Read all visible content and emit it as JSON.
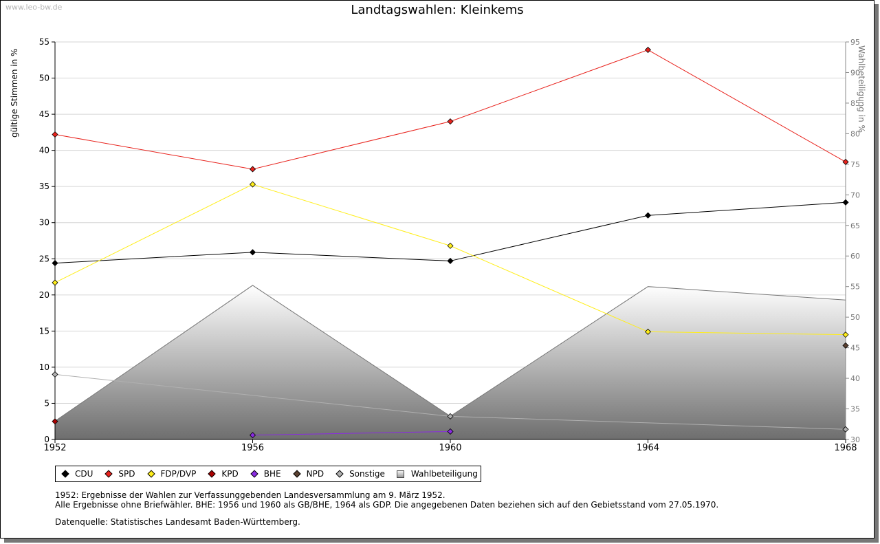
{
  "watermark": "www.leo-bw.de",
  "chart_data": {
    "type": "line",
    "title": "Landtagswahlen: Kleinkems",
    "xlabel": "",
    "ylabel": "gültige Stimmen in %",
    "y2label": "Wahlbeteiligung in %",
    "x": [
      "1952",
      "1956",
      "1960",
      "1964",
      "1968"
    ],
    "ylim": [
      0,
      55
    ],
    "y2lim": [
      30,
      95
    ],
    "yticks": [
      "0",
      "5",
      "10",
      "15",
      "20",
      "25",
      "30",
      "35",
      "40",
      "45",
      "50",
      "55"
    ],
    "y2ticks": [
      "30",
      "35",
      "40",
      "45",
      "50",
      "55",
      "60",
      "65",
      "70",
      "75",
      "80",
      "85",
      "90",
      "95"
    ],
    "grid": true,
    "series": [
      {
        "name": "CDU",
        "color": "#000000",
        "values": [
          24.4,
          25.9,
          24.7,
          31.0,
          32.8
        ]
      },
      {
        "name": "SPD",
        "color": "#e8221c",
        "values": [
          42.2,
          37.4,
          44.0,
          53.9,
          38.4
        ]
      },
      {
        "name": "FDP/DVP",
        "color": "#ffee1a",
        "values": [
          21.7,
          35.3,
          26.8,
          14.9,
          14.5
        ]
      },
      {
        "name": "KPD",
        "color": "#aa0000",
        "values": [
          2.5,
          null,
          null,
          null,
          null
        ]
      },
      {
        "name": "BHE",
        "color": "#8a2be2",
        "values": [
          null,
          0.6,
          1.1,
          null,
          null
        ]
      },
      {
        "name": "NPD",
        "color": "#5a4030",
        "values": [
          null,
          null,
          null,
          null,
          13.0
        ]
      },
      {
        "name": "Sonstige",
        "color": "#b0b0b0",
        "values": [
          9.0,
          null,
          3.2,
          null,
          1.4
        ]
      },
      {
        "name": "Wahlbeteiligung",
        "axis": "right",
        "type": "area",
        "values": [
          33.0,
          55.2,
          33.8,
          55.0,
          52.8
        ]
      }
    ]
  },
  "notes": [
    "1952: Ergebnisse der Wahlen zur Verfassunggebenden Landesversammlung am 9. März 1952.",
    "Alle Ergebnisse ohne Briefwähler. BHE: 1956 und 1960 als GB/BHE, 1964 als GDP. Die angegebenen Daten beziehen sich auf den Gebietsstand vom 27.05.1970."
  ],
  "source": "Datenquelle: Statistisches Landesamt Baden-Württemberg."
}
